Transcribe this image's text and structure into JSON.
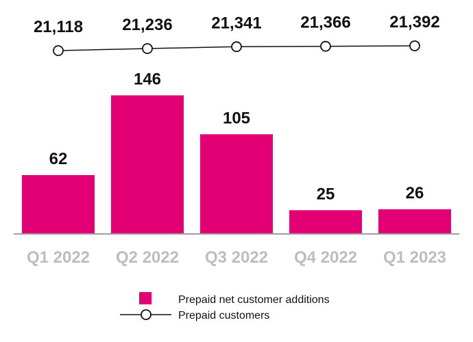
{
  "chart_data": {
    "type": "bar",
    "categories": [
      "Q1 2022",
      "Q2 2022",
      "Q3 2022",
      "Q4 2022",
      "Q1 2023"
    ],
    "series": [
      {
        "name": "Prepaid net customer additions",
        "type": "bar",
        "values": [
          62,
          146,
          105,
          25,
          26
        ],
        "value_labels": [
          "62",
          "146",
          "105",
          "25",
          "26"
        ],
        "color": "#e20074"
      },
      {
        "name": "Prepaid customers",
        "type": "line",
        "values": [
          21118,
          21236,
          21341,
          21366,
          21392
        ],
        "value_labels": [
          "21,118",
          "21,236",
          "21,341",
          "21,366",
          "21,392"
        ],
        "color": "#111111",
        "marker": "hollow-circle"
      }
    ],
    "title": "",
    "xlabel": "",
    "ylabel": "",
    "ylim": [
      0,
      160
    ],
    "legend_position": "bottom-center",
    "grid": false
  }
}
